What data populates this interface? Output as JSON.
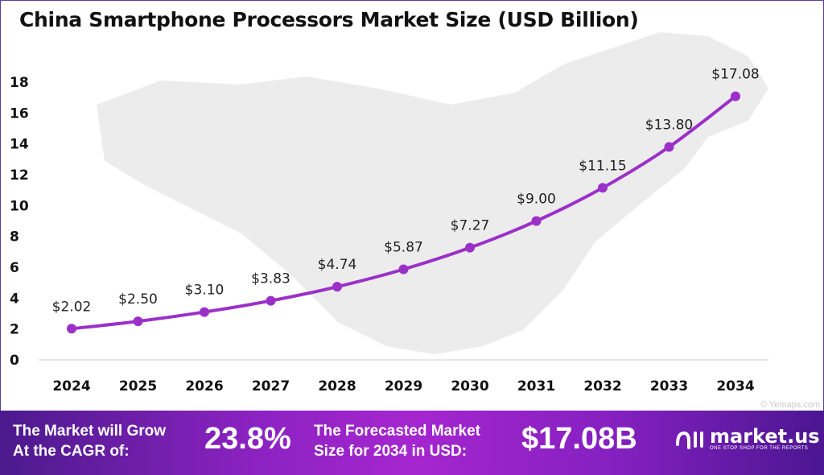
{
  "chart_data": {
    "type": "line",
    "title": "China Smartphone Processors Market Size (USD Billion)",
    "categories": [
      "2024",
      "2025",
      "2026",
      "2027",
      "2028",
      "2029",
      "2030",
      "2031",
      "2032",
      "2033",
      "2034"
    ],
    "values": [
      2.02,
      2.5,
      3.1,
      3.83,
      4.74,
      5.87,
      7.27,
      9.0,
      11.15,
      13.8,
      17.08
    ],
    "data_labels": [
      "$2.02",
      "$2.50",
      "$3.10",
      "$3.83",
      "$4.74",
      "$5.87",
      "$7.27",
      "$9.00",
      "$11.15",
      "$13.80",
      "$17.08"
    ],
    "yticks": [
      "0",
      "2",
      "4",
      "6",
      "8",
      "10",
      "12",
      "14",
      "16",
      "18"
    ],
    "ylim": [
      0,
      18
    ],
    "xlabel": "",
    "ylabel": "",
    "grid": false,
    "line_color": "#9b30c8",
    "watermark": "© Yemaps.com"
  },
  "banner": {
    "cagr_label_line1": "The Market will Grow",
    "cagr_label_line2": "At the CAGR of:",
    "cagr_value": "23.8%",
    "forecast_label_line1": "The Forecasted Market",
    "forecast_label_line2": "Size for 2034 in USD:",
    "forecast_value": "$17.08B",
    "logo_name": "market.us",
    "logo_tagline": "ONE STOP SHOP FOR THE REPORTS"
  }
}
